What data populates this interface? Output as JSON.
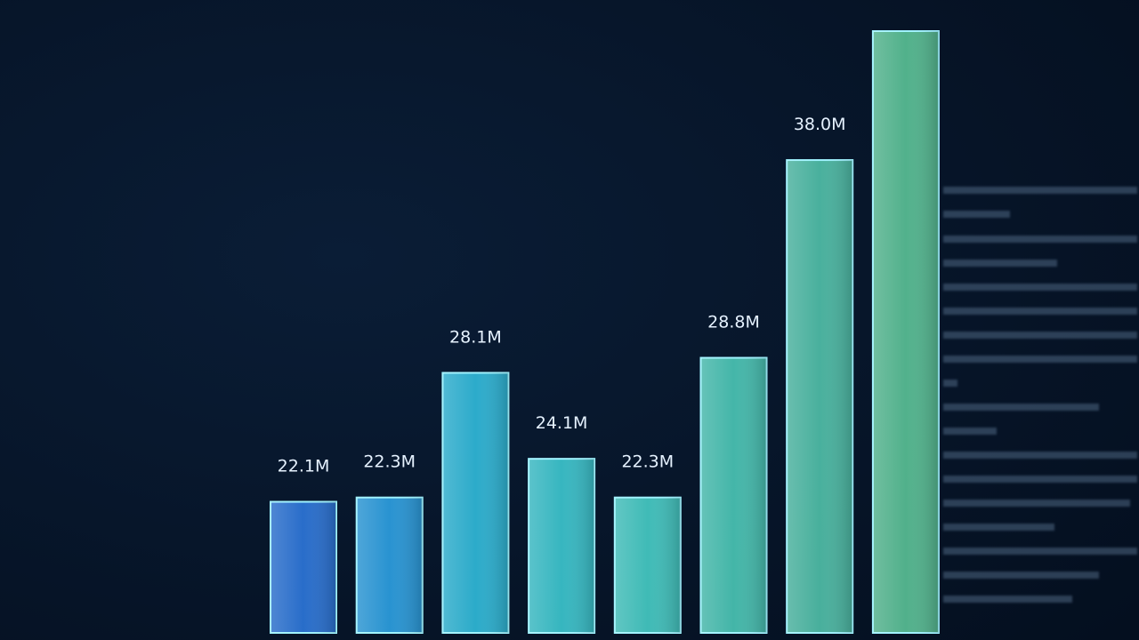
{
  "chart_data": {
    "type": "bar",
    "values": [
      22.1,
      22.3,
      28.1,
      24.1,
      22.3,
      28.8,
      38.0,
      44
    ],
    "value_labels": [
      "22.1M",
      "22.3M",
      "28.1M",
      "24.1M",
      "22.3M",
      "28.8M",
      "38.0M",
      null
    ],
    "colors": [
      "#2f7de6",
      "#2fa9ee",
      "#33c6e6",
      "#3fd2da",
      "#4ad8d0",
      "#4fd2c0",
      "#55cbb2",
      "#5fcc9e"
    ],
    "ylim": [
      16,
      44
    ]
  }
}
